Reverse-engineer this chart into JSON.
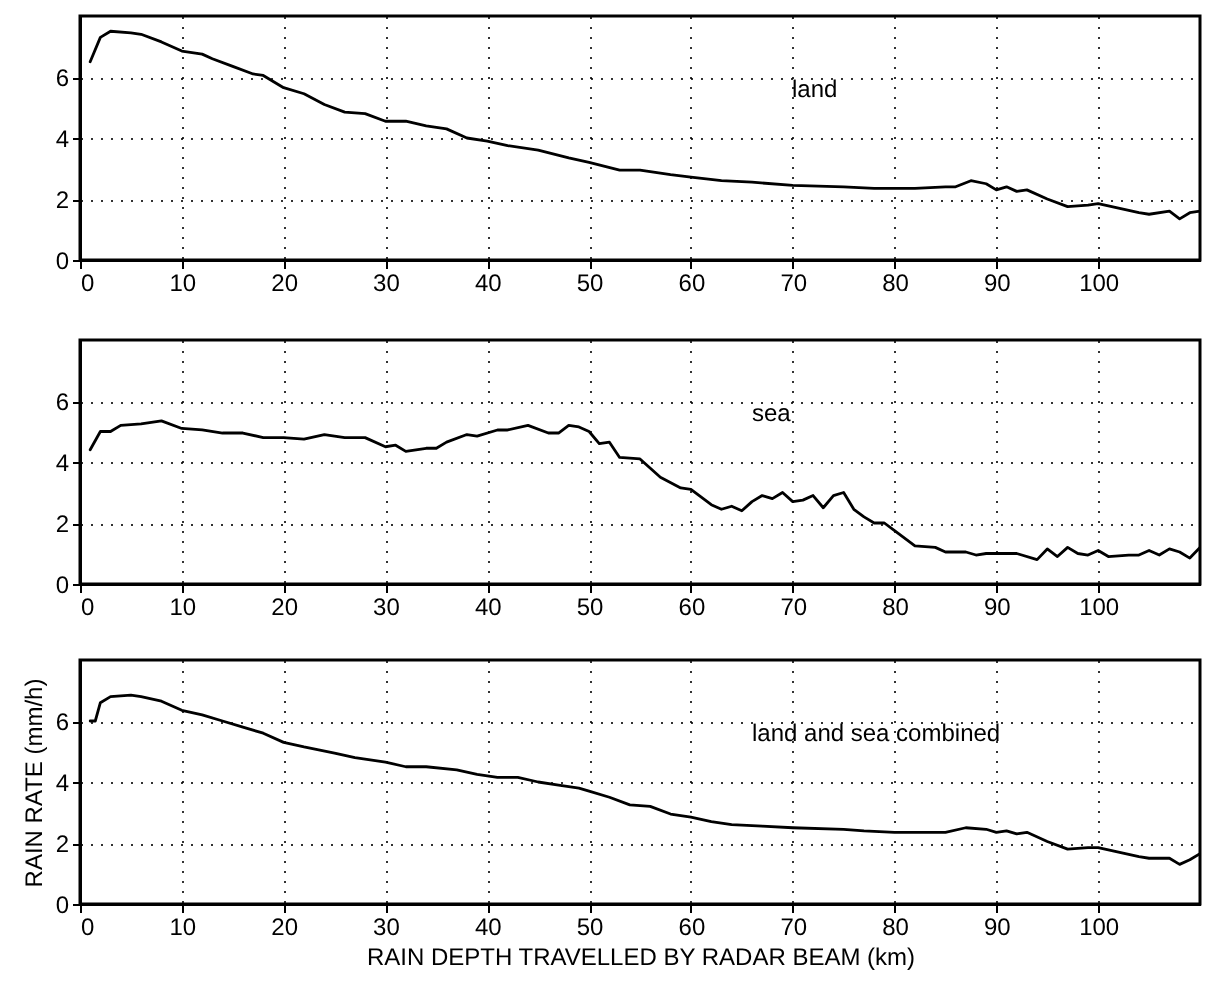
{
  "chart_data": [
    {
      "type": "line",
      "annotations": [
        "land"
      ],
      "xlim": [
        0,
        110
      ],
      "ylim": [
        0,
        8
      ],
      "xticks": [
        0,
        10,
        20,
        30,
        40,
        50,
        60,
        70,
        80,
        90,
        100
      ],
      "yticks": [
        0,
        2,
        4,
        6
      ],
      "grid": true,
      "series": [
        {
          "color": "#000000",
          "x": [
            1,
            2,
            3,
            5,
            6,
            8,
            10,
            12,
            13,
            15,
            17,
            18,
            20,
            22,
            24,
            26,
            28,
            30,
            32,
            34,
            36,
            38,
            40,
            42,
            45,
            48,
            50,
            53,
            55,
            58,
            60,
            63,
            66,
            70,
            75,
            78,
            82,
            85,
            86,
            87.5,
            89,
            90,
            91,
            92,
            93,
            95,
            97,
            99,
            100,
            102,
            104,
            105,
            107,
            108,
            109,
            110
          ],
          "values": [
            6.5,
            7.3,
            7.5,
            7.45,
            7.4,
            7.15,
            6.85,
            6.75,
            6.6,
            6.35,
            6.1,
            6.05,
            5.65,
            5.45,
            5.1,
            4.85,
            4.8,
            4.55,
            4.55,
            4.4,
            4.3,
            4.0,
            3.9,
            3.75,
            3.6,
            3.35,
            3.2,
            2.95,
            2.95,
            2.8,
            2.72,
            2.6,
            2.55,
            2.45,
            2.4,
            2.35,
            2.35,
            2.4,
            2.4,
            2.6,
            2.5,
            2.3,
            2.4,
            2.25,
            2.3,
            2.0,
            1.75,
            1.8,
            1.85,
            1.7,
            1.55,
            1.5,
            1.6,
            1.35,
            1.55,
            1.6
          ]
        }
      ]
    },
    {
      "type": "line",
      "annotations": [
        "sea"
      ],
      "xlim": [
        0,
        110
      ],
      "ylim": [
        0,
        8
      ],
      "xticks": [
        0,
        10,
        20,
        30,
        40,
        50,
        60,
        70,
        80,
        90,
        100
      ],
      "yticks": [
        0,
        2,
        4,
        6
      ],
      "grid": true,
      "series": [
        {
          "color": "#000000",
          "x": [
            1,
            2,
            3,
            4,
            6,
            8,
            10,
            12,
            14,
            16,
            18,
            20,
            22,
            24,
            26,
            28,
            30,
            31,
            32,
            34,
            35,
            36,
            38,
            39,
            41,
            42,
            44,
            46,
            47,
            48,
            49,
            50,
            51,
            52,
            53,
            55,
            57,
            59,
            60,
            62,
            63,
            64,
            65,
            66,
            67,
            68,
            69,
            70,
            71,
            72,
            73,
            74,
            75,
            76,
            77,
            78,
            79,
            80,
            82,
            84,
            85,
            87,
            88,
            89,
            92,
            94,
            95,
            96,
            97,
            98,
            99,
            100,
            101,
            103,
            104,
            105,
            106,
            107,
            108,
            109,
            110
          ],
          "values": [
            4.4,
            5.0,
            5.0,
            5.2,
            5.25,
            5.35,
            5.1,
            5.05,
            4.95,
            4.95,
            4.8,
            4.8,
            4.75,
            4.9,
            4.8,
            4.8,
            4.5,
            4.55,
            4.35,
            4.45,
            4.45,
            4.65,
            4.9,
            4.85,
            5.05,
            5.05,
            5.2,
            4.95,
            4.95,
            5.2,
            5.15,
            5.0,
            4.6,
            4.65,
            4.15,
            4.1,
            3.5,
            3.15,
            3.1,
            2.6,
            2.45,
            2.55,
            2.4,
            2.7,
            2.9,
            2.8,
            3.0,
            2.7,
            2.75,
            2.9,
            2.5,
            2.9,
            3.0,
            2.45,
            2.2,
            2.0,
            2.0,
            1.75,
            1.25,
            1.2,
            1.05,
            1.05,
            0.95,
            1.0,
            1.0,
            0.8,
            1.15,
            0.9,
            1.2,
            1.0,
            0.95,
            1.1,
            0.9,
            0.95,
            0.95,
            1.1,
            0.95,
            1.15,
            1.05,
            0.85,
            1.2
          ]
        }
      ]
    },
    {
      "type": "line",
      "annotations": [
        "land and sea combined"
      ],
      "xlabel": "RAIN DEPTH TRAVELLED BY RADAR BEAM (km)",
      "ylabel": "RAIN RATE (mm/h)",
      "xlim": [
        0,
        110
      ],
      "ylim": [
        0,
        8
      ],
      "xticks": [
        0,
        10,
        20,
        30,
        40,
        50,
        60,
        70,
        80,
        90,
        100
      ],
      "yticks": [
        0,
        2,
        4,
        6
      ],
      "grid": true,
      "series": [
        {
          "color": "#000000",
          "x": [
            1,
            1.5,
            2,
            3,
            5,
            6,
            8,
            10,
            12,
            14,
            16,
            18,
            20,
            22,
            25,
            27,
            30,
            32,
            34,
            37,
            39,
            41,
            43,
            45,
            47,
            49,
            50,
            52,
            54,
            56,
            58,
            60,
            62,
            64,
            67,
            70,
            75,
            77,
            80,
            83,
            85,
            87,
            89,
            90,
            91,
            92,
            93,
            95,
            97,
            99,
            100,
            102,
            104,
            105,
            107,
            108,
            109,
            110
          ],
          "values": [
            6.0,
            6.0,
            6.6,
            6.8,
            6.85,
            6.8,
            6.65,
            6.35,
            6.2,
            6.0,
            5.8,
            5.6,
            5.3,
            5.15,
            4.95,
            4.8,
            4.65,
            4.5,
            4.5,
            4.4,
            4.25,
            4.15,
            4.15,
            4.0,
            3.9,
            3.8,
            3.7,
            3.5,
            3.25,
            3.2,
            2.95,
            2.85,
            2.7,
            2.6,
            2.55,
            2.5,
            2.45,
            2.4,
            2.35,
            2.35,
            2.35,
            2.5,
            2.45,
            2.35,
            2.4,
            2.3,
            2.35,
            2.05,
            1.8,
            1.85,
            1.85,
            1.7,
            1.55,
            1.5,
            1.5,
            1.3,
            1.45,
            1.65
          ]
        }
      ]
    }
  ]
}
